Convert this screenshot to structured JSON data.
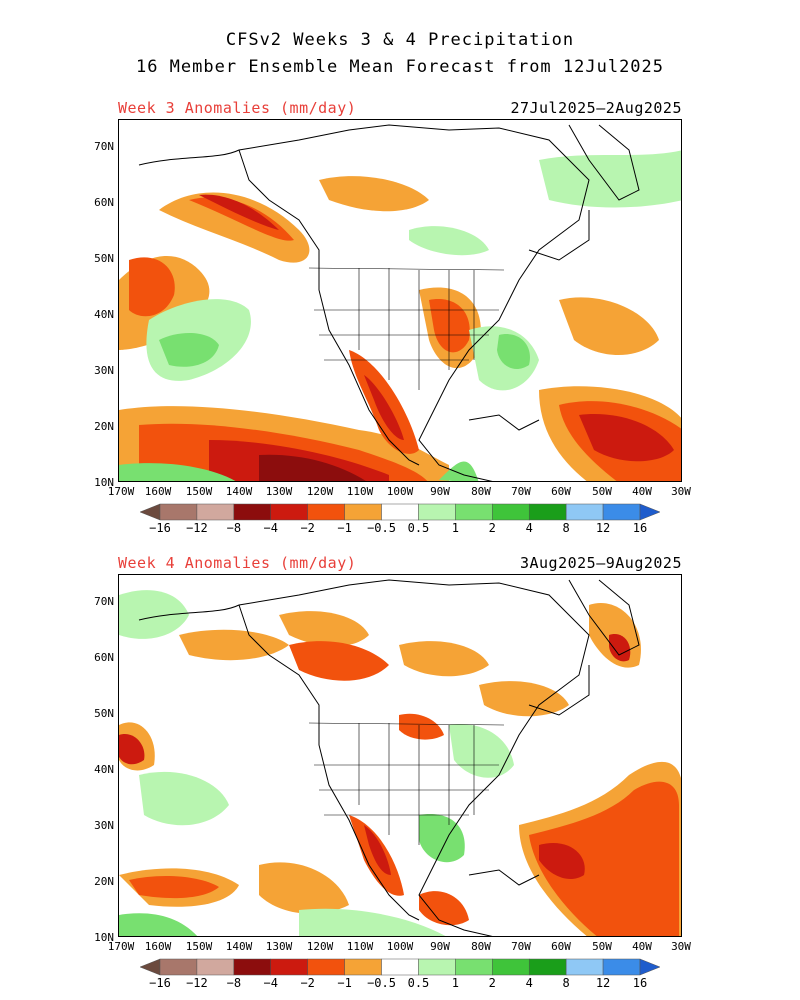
{
  "title_line1": "CFSv2 Weeks 3 & 4 Precipitation",
  "title_line2": "16 Member Ensemble Mean Forecast from 12Jul2025",
  "panels": [
    {
      "label": "Week 3 Anomalies (mm/day)",
      "dates": "27Jul2025–2Aug2025"
    },
    {
      "label": "Week 4 Anomalies (mm/day)",
      "dates": "3Aug2025–9Aug2025"
    }
  ],
  "lat_labels": [
    "70N",
    "60N",
    "50N",
    "40N",
    "30N",
    "20N",
    "10N"
  ],
  "lon_labels": [
    "170W",
    "160W",
    "150W",
    "140W",
    "130W",
    "120W",
    "110W",
    "100W",
    "90W",
    "80W",
    "70W",
    "60W",
    "50W",
    "40W",
    "30W"
  ],
  "colorbar": {
    "labels": [
      "−16",
      "−12",
      "−8",
      "−4",
      "−2",
      "−1",
      "−0.5",
      "0.5",
      "1",
      "2",
      "4",
      "8",
      "12",
      "16"
    ],
    "colors": [
      "#6b4a3e",
      "#a8776b",
      "#d1a89e",
      "#8c0d0d",
      "#cc1a0f",
      "#f2520d",
      "#f5a336",
      "#ffffff",
      "#b8f5b0",
      "#78e070",
      "#3fc43a",
      "#1a9e1a",
      "#8fc8f5",
      "#3b8ce8",
      "#1f5ccc"
    ]
  }
}
